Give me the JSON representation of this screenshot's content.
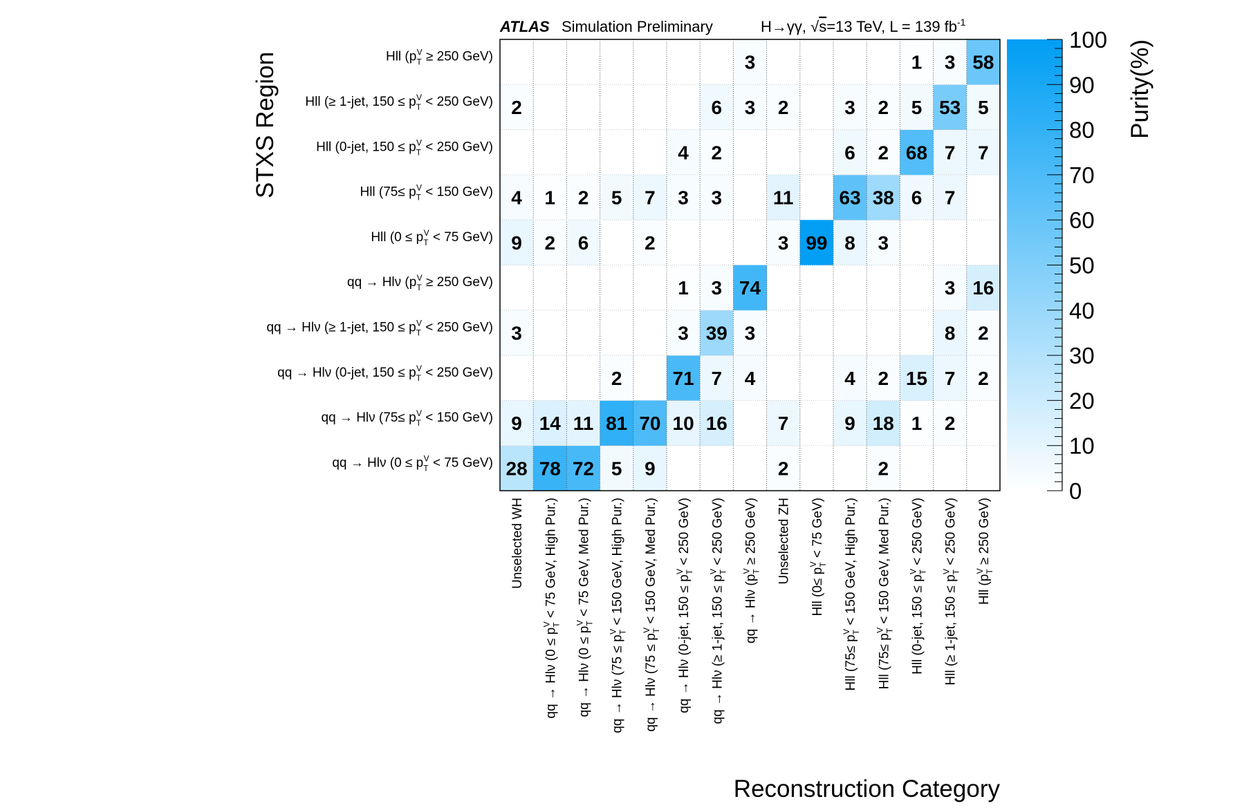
{
  "chart_data": {
    "type": "heatmap",
    "header": {
      "experiment": "ATLAS",
      "status": "Simulation Preliminary",
      "process": "H→γγ, ",
      "sqrt_s": "s",
      "energy_lumi": "=13 TeV, L = 139 fb",
      "lumi_exp": "-1"
    },
    "ylabel": "STXS Region",
    "xlabel": "Reconstruction Category",
    "zlabel": "Purity(%)",
    "zlim": [
      0,
      100
    ],
    "colorbar_ticks": [
      "0",
      "10",
      "20",
      "30",
      "40",
      "50",
      "60",
      "70",
      "80",
      "90",
      "100"
    ],
    "y_categories": [
      {
        "pre": "qq → Hlν (0 ≤ p",
        "post": " < 75 GeV)"
      },
      {
        "pre": "qq → Hlν (75≤ p",
        "post": " < 150 GeV)"
      },
      {
        "pre": "qq → Hlν (0-jet, 150 ≤ p",
        "post": " < 250 GeV)"
      },
      {
        "pre": "qq → Hlν (≥ 1-jet, 150 ≤ p",
        "post": " < 250 GeV)"
      },
      {
        "pre": "qq → Hlν (p",
        "post": " ≥ 250 GeV)"
      },
      {
        "pre": "Hll (0 ≤ p",
        "post": " < 75 GeV)"
      },
      {
        "pre": "Hll (75≤ p",
        "post": " < 150 GeV)"
      },
      {
        "pre": "Hll (0-jet, 150 ≤ p",
        "post": " < 250 GeV)"
      },
      {
        "pre": "Hll (≥ 1-jet, 150 ≤ p",
        "post": " < 250 GeV)"
      },
      {
        "pre": "Hll (p",
        "post": " ≥ 250 GeV)"
      }
    ],
    "x_categories": [
      {
        "pre": "Unselected WH",
        "post": ""
      },
      {
        "pre": "qq → Hlν (0 ≤ p",
        "post": " < 75 GeV, High Pur.)"
      },
      {
        "pre": "qq → Hlν (0 ≤ p",
        "post": " < 75 GeV, Med  Pur.)"
      },
      {
        "pre": "qq → Hlν (75 ≤ p",
        "post": " < 150 GeV, High Pur.)"
      },
      {
        "pre": "qq → Hlν (75 ≤ p",
        "post": " < 150 GeV, Med  Pur.)"
      },
      {
        "pre": "qq → Hlν (0-jet, 150 ≤ p",
        "post": " < 250 GeV)"
      },
      {
        "pre": "qq → Hlν (≥ 1-jet, 150 ≤ p",
        "post": " < 250 GeV)"
      },
      {
        "pre": "qq → Hlν (p",
        "post": " ≥ 250 GeV)"
      },
      {
        "pre": "Unselected ZH",
        "post": ""
      },
      {
        "pre": "Hll (0≤ p",
        "post": " < 75 GeV)"
      },
      {
        "pre": "Hll (75≤ p",
        "post": " < 150 GeV, High Pur.)"
      },
      {
        "pre": "Hll (75≤ p",
        "post": " < 150 GeV, Med  Pur.)"
      },
      {
        "pre": "Hll (0-jet, 150 ≤ p",
        "post": " < 250 GeV)"
      },
      {
        "pre": "Hll (≥ 1-jet, 150 ≤ p",
        "post": " < 250 GeV)"
      },
      {
        "pre": "Hll (p",
        "post": " ≥ 250 GeV)"
      }
    ],
    "pt_super": "V",
    "pt_sub": "T",
    "values": [
      [
        28,
        78,
        72,
        5,
        9,
        null,
        null,
        null,
        2,
        null,
        null,
        2,
        null,
        null,
        null
      ],
      [
        9,
        14,
        11,
        81,
        70,
        10,
        16,
        null,
        7,
        null,
        9,
        18,
        1,
        2,
        null
      ],
      [
        null,
        null,
        null,
        2,
        null,
        71,
        7,
        4,
        null,
        null,
        4,
        2,
        15,
        7,
        2
      ],
      [
        3,
        null,
        null,
        null,
        null,
        3,
        39,
        3,
        null,
        null,
        null,
        null,
        null,
        8,
        2
      ],
      [
        null,
        null,
        null,
        null,
        null,
        1,
        3,
        74,
        null,
        null,
        null,
        null,
        null,
        3,
        16
      ],
      [
        9,
        2,
        6,
        null,
        2,
        null,
        null,
        null,
        3,
        99,
        8,
        3,
        null,
        null,
        null
      ],
      [
        4,
        1,
        2,
        5,
        7,
        3,
        3,
        null,
        11,
        null,
        63,
        38,
        6,
        7,
        null
      ],
      [
        null,
        null,
        null,
        null,
        null,
        4,
        2,
        null,
        null,
        null,
        6,
        2,
        68,
        7,
        7
      ],
      [
        2,
        null,
        null,
        null,
        null,
        null,
        6,
        3,
        2,
        null,
        3,
        2,
        5,
        53,
        5
      ],
      [
        null,
        null,
        null,
        null,
        null,
        null,
        null,
        3,
        null,
        null,
        null,
        null,
        1,
        3,
        58
      ]
    ],
    "colors": {
      "low": "#ffffff",
      "high": "#009ef4",
      "grid": "#c8c8c8",
      "frame": "#000000"
    }
  }
}
